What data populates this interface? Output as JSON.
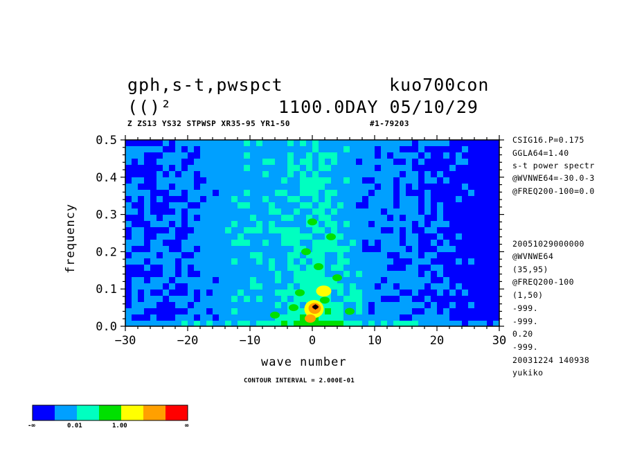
{
  "header": {
    "title_left_1": "gph,s-t,pwspct",
    "title_right_1": "kuo700con",
    "title_left_2": "(()²",
    "title_right_2": "1100.0DAY 05/10/29",
    "subtitle": "Z ZS13 YS32 STPWSP XR35-95 YR1-50",
    "subtitle_id": "#1-79203"
  },
  "side_info_top": [
    "CSIG16.P=0.175",
    "GGLA64=1.40",
    "s-t power spectr",
    "@WVNWE64=-30.0-3",
    "@FREQ200-100=0.0"
  ],
  "side_info_bottom": [
    "20051029000000",
    "@WVNWE64",
    "(35,95)",
    "@FREQ200-100",
    "(1,50)",
    "-999.",
    "-999.",
    "0.20",
    "-999.",
    "20031224 140938",
    "yukiko"
  ],
  "contour_interval": "CONTOUR INTERVAL = 2.000E-01",
  "colorbar": {
    "colors": [
      "#0000ff",
      "#00a0ff",
      "#00ffc0",
      "#00e000",
      "#ffff00",
      "#ffa000",
      "#ff0000"
    ],
    "labels": [
      "-∞",
      "0.01",
      "1.00",
      "∞"
    ]
  },
  "chart_data": {
    "type": "heatmap",
    "title": "gph,s-t,pwspct",
    "xlabel": "wave number",
    "ylabel": "frequency",
    "xlim": [
      -30,
      30
    ],
    "ylim": [
      0.0,
      0.5
    ],
    "x_ticks": [
      -30,
      -20,
      -10,
      0,
      10,
      20,
      30
    ],
    "x_tick_labels": [
      "−30",
      "−20",
      "−10",
      "0",
      "10",
      "20",
      "30"
    ],
    "y_ticks": [
      0.0,
      0.1,
      0.2,
      0.3,
      0.4,
      0.5
    ],
    "y_tick_labels": [
      "0.0",
      "0.1",
      "0.2",
      "0.3",
      "0.4",
      "0.5"
    ],
    "color_levels": [
      "#0000ff",
      "#00a0ff",
      "#00ffc0",
      "#00e000",
      "#ffff00",
      "#ffa000",
      "#ff0000"
    ],
    "features": [
      {
        "x": 0.5,
        "y": 0.05,
        "level": 6
      },
      {
        "x": 1.5,
        "y": 0.1,
        "level": 4
      },
      {
        "x": 0.0,
        "y": 0.03,
        "level": 5
      }
    ]
  }
}
